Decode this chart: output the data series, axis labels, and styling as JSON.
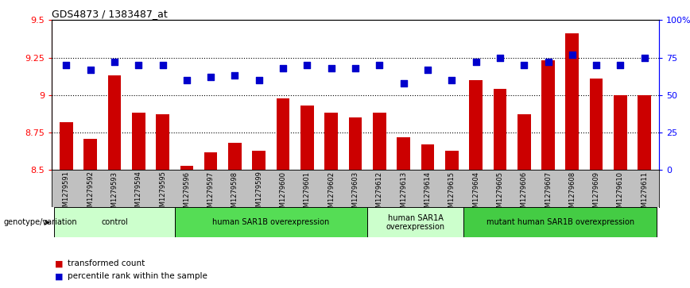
{
  "title": "GDS4873 / 1383487_at",
  "samples": [
    "GSM1279591",
    "GSM1279592",
    "GSM1279593",
    "GSM1279594",
    "GSM1279595",
    "GSM1279596",
    "GSM1279597",
    "GSM1279598",
    "GSM1279599",
    "GSM1279600",
    "GSM1279601",
    "GSM1279602",
    "GSM1279603",
    "GSM1279612",
    "GSM1279613",
    "GSM1279614",
    "GSM1279615",
    "GSM1279604",
    "GSM1279605",
    "GSM1279606",
    "GSM1279607",
    "GSM1279608",
    "GSM1279609",
    "GSM1279610",
    "GSM1279611"
  ],
  "transformed_count": [
    8.82,
    8.71,
    9.13,
    8.88,
    8.87,
    8.53,
    8.62,
    8.68,
    8.63,
    8.98,
    8.93,
    8.88,
    8.85,
    8.88,
    8.72,
    8.67,
    8.63,
    9.1,
    9.04,
    8.87,
    9.23,
    9.41,
    9.11,
    9.0,
    9.0
  ],
  "percentile_rank": [
    70,
    67,
    72,
    70,
    70,
    60,
    62,
    63,
    60,
    68,
    70,
    68,
    68,
    70,
    58,
    67,
    60,
    72,
    75,
    70,
    72,
    77,
    70,
    70,
    75
  ],
  "ylim_left": [
    8.5,
    9.5
  ],
  "ylim_right": [
    0,
    100
  ],
  "yticks_left": [
    8.5,
    8.75,
    9.0,
    9.25,
    9.5
  ],
  "ytick_labels_left": [
    "8.5",
    "8.75",
    "9",
    "9.25",
    "9.5"
  ],
  "yticks_right": [
    0,
    25,
    50,
    75,
    100
  ],
  "ytick_labels_right": [
    "0",
    "25",
    "50",
    "75",
    "100%"
  ],
  "bar_color": "#cc0000",
  "dot_color": "#0000cc",
  "groups": [
    {
      "label": "control",
      "start": 0,
      "end": 5,
      "color": "#ccffcc"
    },
    {
      "label": "human SAR1B overexpression",
      "start": 5,
      "end": 13,
      "color": "#55dd55"
    },
    {
      "label": "human SAR1A\noverexpression",
      "start": 13,
      "end": 17,
      "color": "#ccffcc"
    },
    {
      "label": "mutant human SAR1B overexpression",
      "start": 17,
      "end": 25,
      "color": "#44cc44"
    }
  ],
  "genotype_label": "genotype/variation",
  "legend_items": [
    {
      "label": "transformed count",
      "color": "#cc0000"
    },
    {
      "label": "percentile rank within the sample",
      "color": "#0000cc"
    }
  ],
  "bar_width": 0.55,
  "dot_size": 30,
  "background_color": "#ffffff",
  "tick_label_area_color": "#c0c0c0"
}
